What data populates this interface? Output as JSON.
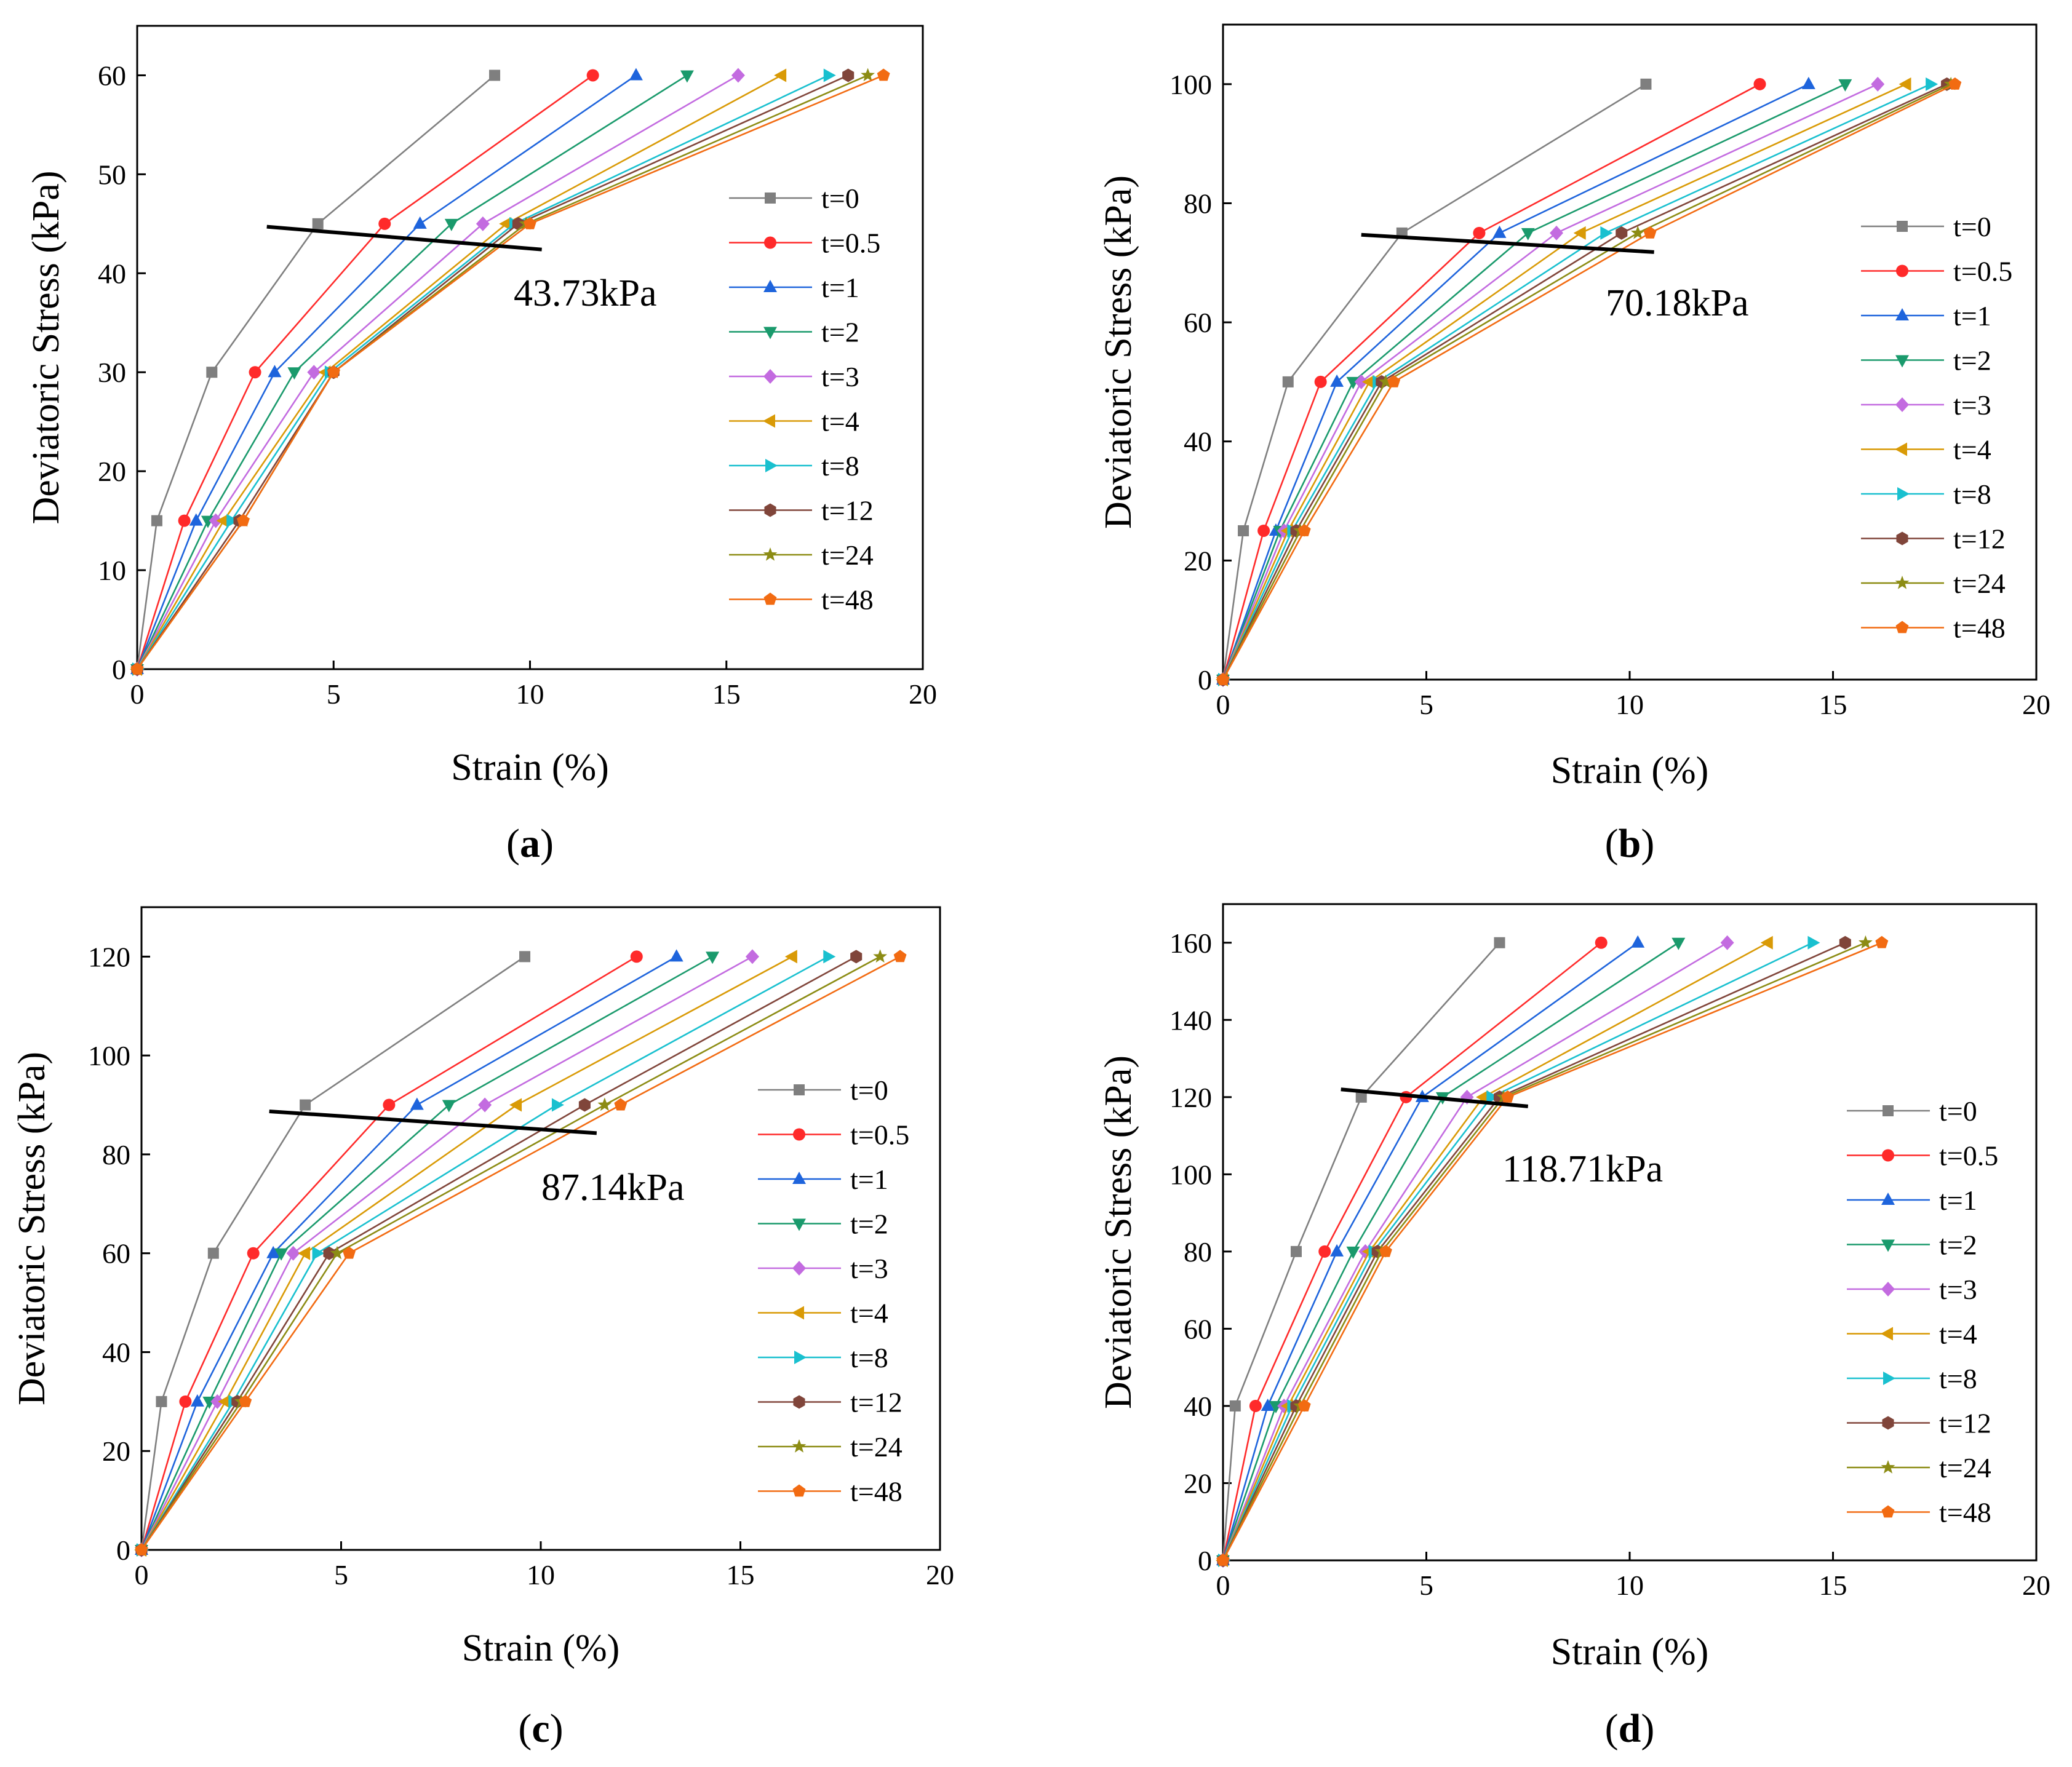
{
  "figure": {
    "xlabel": "Strain (%)",
    "ylabel": "Deviatoric Stress (kPa)"
  },
  "series_styles": [
    {
      "name": "t=0",
      "color": "#7f7f7f",
      "marker": "square"
    },
    {
      "name": "t=0.5",
      "color": "#ff2a2a",
      "marker": "circle"
    },
    {
      "name": "t=1",
      "color": "#1e64dc",
      "marker": "triangle-up"
    },
    {
      "name": "t=2",
      "color": "#1a9a6c",
      "marker": "triangle-down"
    },
    {
      "name": "t=3",
      "color": "#c36be0",
      "marker": "diamond"
    },
    {
      "name": "t=4",
      "color": "#d99a06",
      "marker": "triangle-left"
    },
    {
      "name": "t=8",
      "color": "#19c0cf",
      "marker": "triangle-right"
    },
    {
      "name": "t=12",
      "color": "#80453a",
      "marker": "hexagon"
    },
    {
      "name": "t=24",
      "color": "#8c8c14",
      "marker": "star"
    },
    {
      "name": "t=48",
      "color": "#f26b12",
      "marker": "pentagon"
    }
  ],
  "chart_data": [
    {
      "type": "line",
      "panel_label": "a",
      "title": "",
      "xlabel": "Strain (%)",
      "ylabel": "Deviatoric Stress (kPa)",
      "xlim": [
        0,
        20
      ],
      "ylim": [
        0,
        65
      ],
      "xticks": [
        0,
        5,
        10,
        15,
        20
      ],
      "yticks": [
        0,
        10,
        20,
        30,
        40,
        50,
        60
      ],
      "yield_line": {
        "x": [
          3.3,
          10.3
        ],
        "y": [
          44.7,
          42.4
        ],
        "label": "43.73kPa"
      },
      "series": [
        {
          "name": "t=0",
          "x": [
            0,
            0.5,
            1.9,
            4.6,
            9.1
          ],
          "y": [
            0,
            15,
            30,
            45,
            60
          ]
        },
        {
          "name": "t=0.5",
          "x": [
            0,
            1.2,
            3.0,
            6.3,
            11.6
          ],
          "y": [
            0,
            15,
            30,
            45,
            60
          ]
        },
        {
          "name": "t=1",
          "x": [
            0,
            1.5,
            3.5,
            7.2,
            12.7
          ],
          "y": [
            0,
            15,
            30,
            45,
            60
          ]
        },
        {
          "name": "t=2",
          "x": [
            0,
            1.8,
            4.0,
            8.0,
            14.0
          ],
          "y": [
            0,
            15,
            30,
            45,
            60
          ]
        },
        {
          "name": "t=3",
          "x": [
            0,
            2.0,
            4.5,
            8.8,
            15.3
          ],
          "y": [
            0,
            15,
            30,
            45,
            60
          ]
        },
        {
          "name": "t=4",
          "x": [
            0,
            2.2,
            4.8,
            9.4,
            16.4
          ],
          "y": [
            0,
            15,
            30,
            45,
            60
          ]
        },
        {
          "name": "t=8",
          "x": [
            0,
            2.4,
            4.9,
            9.6,
            17.6
          ],
          "y": [
            0,
            15,
            30,
            45,
            60
          ]
        },
        {
          "name": "t=12",
          "x": [
            0,
            2.6,
            5.0,
            9.7,
            18.1
          ],
          "y": [
            0,
            15,
            30,
            45,
            60
          ]
        },
        {
          "name": "t=24",
          "x": [
            0,
            2.7,
            5.0,
            9.9,
            18.6
          ],
          "y": [
            0,
            15,
            30,
            45,
            60
          ]
        },
        {
          "name": "t=48",
          "x": [
            0,
            2.7,
            5.0,
            10.0,
            19.0
          ],
          "y": [
            0,
            15,
            30,
            45,
            60
          ]
        }
      ]
    },
    {
      "type": "line",
      "panel_label": "b",
      "title": "",
      "xlabel": "Strain (%)",
      "ylabel": "Deviatoric Stress (kPa)",
      "xlim": [
        0,
        20
      ],
      "ylim": [
        0,
        110
      ],
      "xticks": [
        0,
        5,
        10,
        15,
        20
      ],
      "yticks": [
        0,
        20,
        40,
        60,
        80,
        100
      ],
      "yield_line": {
        "x": [
          3.4,
          10.6
        ],
        "y": [
          74.7,
          71.8
        ],
        "label": "70.18kPa"
      },
      "series": [
        {
          "name": "t=0",
          "x": [
            0,
            0.5,
            1.6,
            4.4,
            10.4
          ],
          "y": [
            0,
            25,
            50,
            75,
            100
          ]
        },
        {
          "name": "t=0.5",
          "x": [
            0,
            1.0,
            2.4,
            6.3,
            13.2
          ],
          "y": [
            0,
            25,
            50,
            75,
            100
          ]
        },
        {
          "name": "t=1",
          "x": [
            0,
            1.3,
            2.8,
            6.8,
            14.4
          ],
          "y": [
            0,
            25,
            50,
            75,
            100
          ]
        },
        {
          "name": "t=2",
          "x": [
            0,
            1.4,
            3.2,
            7.5,
            15.3
          ],
          "y": [
            0,
            25,
            50,
            75,
            100
          ]
        },
        {
          "name": "t=3",
          "x": [
            0,
            1.5,
            3.4,
            8.2,
            16.1
          ],
          "y": [
            0,
            25,
            50,
            75,
            100
          ]
        },
        {
          "name": "t=4",
          "x": [
            0,
            1.6,
            3.6,
            8.8,
            16.8
          ],
          "y": [
            0,
            25,
            50,
            75,
            100
          ]
        },
        {
          "name": "t=8",
          "x": [
            0,
            1.7,
            3.8,
            9.4,
            17.4
          ],
          "y": [
            0,
            25,
            50,
            75,
            100
          ]
        },
        {
          "name": "t=12",
          "x": [
            0,
            1.8,
            3.9,
            9.8,
            17.8
          ],
          "y": [
            0,
            25,
            50,
            75,
            100
          ]
        },
        {
          "name": "t=24",
          "x": [
            0,
            1.9,
            4.0,
            10.2,
            17.9
          ],
          "y": [
            0,
            25,
            50,
            75,
            100
          ]
        },
        {
          "name": "t=48",
          "x": [
            0,
            2.0,
            4.2,
            10.5,
            18.0
          ],
          "y": [
            0,
            25,
            50,
            75,
            100
          ]
        }
      ]
    },
    {
      "type": "line",
      "panel_label": "c",
      "title": "",
      "xlabel": "Strain (%)",
      "ylabel": "Deviatoric Stress (kPa)",
      "xlim": [
        0,
        20
      ],
      "ylim": [
        0,
        130
      ],
      "xticks": [
        0,
        5,
        10,
        15,
        20
      ],
      "yticks": [
        0,
        20,
        40,
        60,
        80,
        100,
        120
      ],
      "yield_line": {
        "x": [
          3.2,
          11.4
        ],
        "y": [
          88.7,
          84.3
        ],
        "label": "87.14kPa"
      },
      "series": [
        {
          "name": "t=0",
          "x": [
            0,
            0.5,
            1.8,
            4.1,
            9.6
          ],
          "y": [
            0,
            30,
            60,
            90,
            120
          ]
        },
        {
          "name": "t=0.5",
          "x": [
            0,
            1.1,
            2.8,
            6.2,
            12.4
          ],
          "y": [
            0,
            30,
            60,
            90,
            120
          ]
        },
        {
          "name": "t=1",
          "x": [
            0,
            1.4,
            3.3,
            6.9,
            13.4
          ],
          "y": [
            0,
            30,
            60,
            90,
            120
          ]
        },
        {
          "name": "t=2",
          "x": [
            0,
            1.7,
            3.5,
            7.7,
            14.3
          ],
          "y": [
            0,
            30,
            60,
            90,
            120
          ]
        },
        {
          "name": "t=3",
          "x": [
            0,
            1.9,
            3.8,
            8.6,
            15.3
          ],
          "y": [
            0,
            30,
            60,
            90,
            120
          ]
        },
        {
          "name": "t=4",
          "x": [
            0,
            2.1,
            4.1,
            9.4,
            16.3
          ],
          "y": [
            0,
            30,
            60,
            90,
            120
          ]
        },
        {
          "name": "t=8",
          "x": [
            0,
            2.3,
            4.4,
            10.4,
            17.2
          ],
          "y": [
            0,
            30,
            60,
            90,
            120
          ]
        },
        {
          "name": "t=12",
          "x": [
            0,
            2.4,
            4.7,
            11.1,
            17.9
          ],
          "y": [
            0,
            30,
            60,
            90,
            120
          ]
        },
        {
          "name": "t=24",
          "x": [
            0,
            2.5,
            4.9,
            11.6,
            18.5
          ],
          "y": [
            0,
            30,
            60,
            90,
            120
          ]
        },
        {
          "name": "t=48",
          "x": [
            0,
            2.6,
            5.2,
            12.0,
            19.0
          ],
          "y": [
            0,
            30,
            60,
            90,
            120
          ]
        }
      ]
    },
    {
      "type": "line",
      "panel_label": "d",
      "title": "",
      "xlabel": "Strain (%)",
      "ylabel": "Deviatoric Stress (kPa)",
      "xlim": [
        0,
        20
      ],
      "ylim": [
        0,
        170
      ],
      "xticks": [
        0,
        5,
        10,
        15,
        20
      ],
      "yticks": [
        0,
        20,
        40,
        60,
        80,
        100,
        120,
        140,
        160
      ],
      "yield_line": {
        "x": [
          2.9,
          7.5
        ],
        "y": [
          122,
          117.6
        ],
        "label": "118.71kPa"
      },
      "series": [
        {
          "name": "t=0",
          "x": [
            0,
            0.3,
            1.8,
            3.4,
            6.8
          ],
          "y": [
            0,
            40,
            80,
            120,
            160
          ]
        },
        {
          "name": "t=0.5",
          "x": [
            0,
            0.8,
            2.5,
            4.5,
            9.3
          ],
          "y": [
            0,
            40,
            80,
            120,
            160
          ]
        },
        {
          "name": "t=1",
          "x": [
            0,
            1.1,
            2.8,
            4.9,
            10.2
          ],
          "y": [
            0,
            40,
            80,
            120,
            160
          ]
        },
        {
          "name": "t=2",
          "x": [
            0,
            1.3,
            3.2,
            5.4,
            11.2
          ],
          "y": [
            0,
            40,
            80,
            120,
            160
          ]
        },
        {
          "name": "t=3",
          "x": [
            0,
            1.5,
            3.5,
            6.0,
            12.4
          ],
          "y": [
            0,
            40,
            80,
            120,
            160
          ]
        },
        {
          "name": "t=4",
          "x": [
            0,
            1.6,
            3.6,
            6.4,
            13.4
          ],
          "y": [
            0,
            40,
            80,
            120,
            160
          ]
        },
        {
          "name": "t=8",
          "x": [
            0,
            1.7,
            3.7,
            6.6,
            14.5
          ],
          "y": [
            0,
            40,
            80,
            120,
            160
          ]
        },
        {
          "name": "t=12",
          "x": [
            0,
            1.8,
            3.8,
            6.8,
            15.3
          ],
          "y": [
            0,
            40,
            80,
            120,
            160
          ]
        },
        {
          "name": "t=24",
          "x": [
            0,
            1.9,
            3.9,
            6.9,
            15.8
          ],
          "y": [
            0,
            40,
            80,
            120,
            160
          ]
        },
        {
          "name": "t=48",
          "x": [
            0,
            2.0,
            4.0,
            7.0,
            16.2
          ],
          "y": [
            0,
            40,
            80,
            120,
            160
          ]
        }
      ]
    }
  ]
}
